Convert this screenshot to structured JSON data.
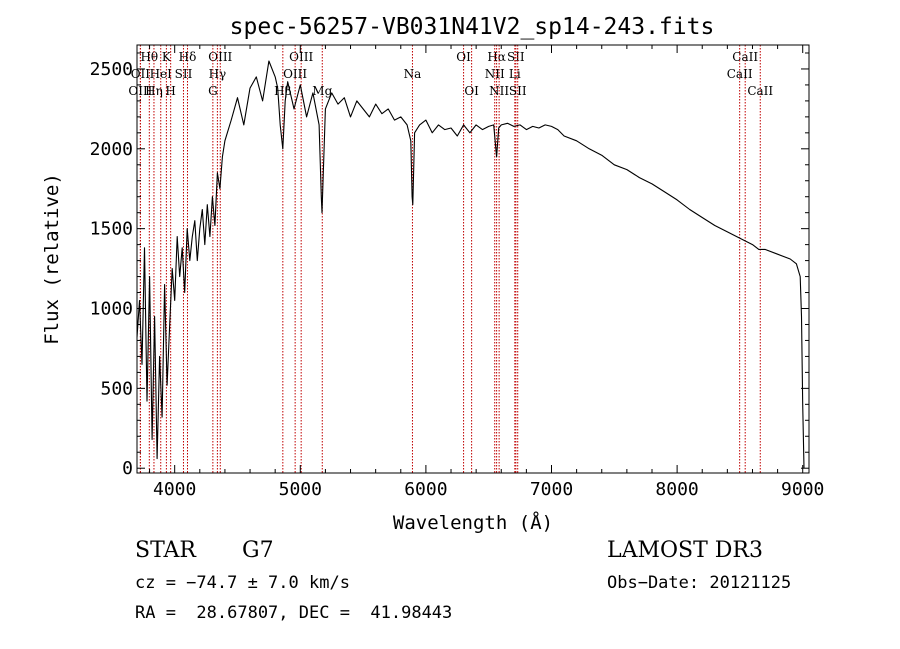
{
  "chart_data": {
    "type": "line",
    "title": "spec-56257-VB031N41V2_sp14-243.fits",
    "xlabel": "Wavelength (Å)",
    "ylabel": "Flux (relative)",
    "xlim": [
      3700,
      9050
    ],
    "ylim": [
      -30,
      2650
    ],
    "xticks": [
      4000,
      5000,
      6000,
      7000,
      8000,
      9000
    ],
    "yticks": [
      0,
      500,
      1000,
      1500,
      2000,
      2500
    ],
    "series": [
      {
        "name": "flux",
        "x": [
          3700,
          3720,
          3740,
          3760,
          3780,
          3800,
          3820,
          3840,
          3860,
          3880,
          3900,
          3920,
          3940,
          3960,
          3980,
          4000,
          4020,
          4040,
          4060,
          4080,
          4100,
          4120,
          4140,
          4160,
          4180,
          4200,
          4220,
          4240,
          4260,
          4280,
          4300,
          4320,
          4340,
          4360,
          4380,
          4400,
          4450,
          4500,
          4550,
          4600,
          4650,
          4700,
          4750,
          4800,
          4820,
          4840,
          4861,
          4880,
          4900,
          4950,
          5000,
          5050,
          5100,
          5150,
          5167,
          5173,
          5183,
          5200,
          5250,
          5300,
          5350,
          5400,
          5450,
          5500,
          5550,
          5600,
          5650,
          5700,
          5750,
          5800,
          5850,
          5880,
          5890,
          5896,
          5910,
          5950,
          6000,
          6050,
          6100,
          6150,
          6200,
          6250,
          6300,
          6350,
          6400,
          6450,
          6500,
          6540,
          6563,
          6580,
          6600,
          6650,
          6700,
          6750,
          6800,
          6850,
          6900,
          6950,
          7000,
          7050,
          7100,
          7200,
          7300,
          7400,
          7500,
          7600,
          7700,
          7800,
          7900,
          8000,
          8100,
          8200,
          8300,
          8400,
          8500,
          8600,
          8650,
          8700,
          8800,
          8900,
          8950,
          8980,
          8990,
          9000,
          9010
        ],
        "values": [
          820,
          1050,
          650,
          1380,
          420,
          1200,
          180,
          950,
          60,
          700,
          320,
          1150,
          520,
          900,
          1250,
          1050,
          1450,
          1200,
          1380,
          1100,
          1500,
          1300,
          1450,
          1550,
          1300,
          1500,
          1620,
          1400,
          1650,
          1450,
          1700,
          1520,
          1850,
          1750,
          1950,
          2050,
          2180,
          2320,
          2150,
          2380,
          2450,
          2300,
          2550,
          2450,
          2380,
          2150,
          2000,
          2300,
          2420,
          2250,
          2400,
          2200,
          2350,
          2150,
          1700,
          1600,
          1850,
          2250,
          2350,
          2280,
          2320,
          2200,
          2300,
          2250,
          2200,
          2280,
          2220,
          2250,
          2180,
          2200,
          2150,
          2050,
          1700,
          1650,
          2100,
          2150,
          2180,
          2100,
          2150,
          2120,
          2130,
          2080,
          2150,
          2100,
          2150,
          2120,
          2140,
          2150,
          1950,
          2130,
          2150,
          2160,
          2140,
          2150,
          2120,
          2140,
          2130,
          2150,
          2140,
          2120,
          2080,
          2050,
          2000,
          1960,
          1900,
          1870,
          1820,
          1780,
          1730,
          1680,
          1620,
          1570,
          1520,
          1480,
          1440,
          1400,
          1370,
          1370,
          1340,
          1310,
          1280,
          1200,
          950,
          400,
          0
        ]
      }
    ],
    "spectral_lines": [
      {
        "label": "Hθ",
        "wl": 3798,
        "row": 1
      },
      {
        "label": "OII",
        "wl": 3727,
        "row": 2
      },
      {
        "label": "OIII",
        "wl": 3727,
        "row": 3
      },
      {
        "label": "K",
        "wl": 3934,
        "row": 1
      },
      {
        "label": "HeI",
        "wl": 3889,
        "row": 2
      },
      {
        "label": "SII",
        "wl": 4070,
        "row": 2
      },
      {
        "label": "Hη",
        "wl": 3835,
        "row": 3
      },
      {
        "label": "H",
        "wl": 3968,
        "row": 3
      },
      {
        "label": "Hδ",
        "wl": 4102,
        "row": 1
      },
      {
        "label": "OIII",
        "wl": 4363,
        "row": 1
      },
      {
        "label": "Hγ",
        "wl": 4340,
        "row": 2
      },
      {
        "label": "G",
        "wl": 4304,
        "row": 3
      },
      {
        "label": "OIII",
        "wl": 5007,
        "row": 1
      },
      {
        "label": "OIII",
        "wl": 4959,
        "row": 2
      },
      {
        "label": "Hβ",
        "wl": 4861,
        "row": 3
      },
      {
        "label": "Mg",
        "wl": 5175,
        "row": 3
      },
      {
        "label": "Na",
        "wl": 5893,
        "row": 2
      },
      {
        "label": "OI",
        "wl": 6300,
        "row": 1
      },
      {
        "label": "OI",
        "wl": 6364,
        "row": 3
      },
      {
        "label": "Hα",
        "wl": 6563,
        "row": 1
      },
      {
        "label": "SII",
        "wl": 6716,
        "row": 1
      },
      {
        "label": "NII",
        "wl": 6548,
        "row": 2
      },
      {
        "label": "Li",
        "wl": 6708,
        "row": 2
      },
      {
        "label": "NII",
        "wl": 6583,
        "row": 3
      },
      {
        "label": "SII",
        "wl": 6731,
        "row": 3
      },
      {
        "label": "CaII",
        "wl": 8542,
        "row": 1
      },
      {
        "label": "CaII",
        "wl": 8498,
        "row": 2
      },
      {
        "label": "CaII",
        "wl": 8662,
        "row": 3
      }
    ],
    "line_color": "#c00000"
  },
  "info": {
    "object_type": "STAR",
    "subclass": "G7",
    "survey": "LAMOST DR3",
    "cz": "cz = −74.7 ± 7.0 km/s",
    "obs_date": "Obs−Date: 20121125",
    "coords": "RA =  28.67807, DEC =  41.98443"
  }
}
